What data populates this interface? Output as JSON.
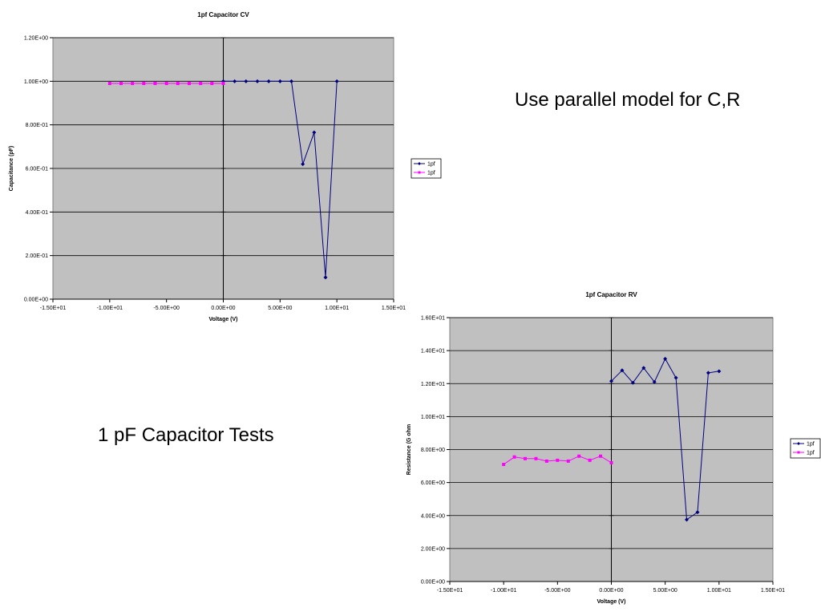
{
  "slide": {
    "heading": "1 pF Capacitor Tests",
    "note": "Use parallel model for C,R"
  },
  "colors": {
    "plot_area": "#c0c0c0",
    "series_positive": "#000080",
    "series_negative": "#ff00ff",
    "gridline": "#000000"
  },
  "chart_data": [
    {
      "type": "scatter",
      "title": "1pf Capacitor CV",
      "xlabel": "Voltage (V)",
      "ylabel": "Capacitance (pF)",
      "xlim": [
        -15,
        15
      ],
      "ylim": [
        0,
        1.2
      ],
      "xticks": [
        -15,
        -10,
        -5,
        0,
        5,
        10,
        15
      ],
      "xtick_labels": [
        "-1.50E+01",
        "-1.00E+01",
        "-5.00E+00",
        "0.00E+00",
        "5.00E+00",
        "1.00E+01",
        "1.50E+01"
      ],
      "yticks": [
        0,
        0.2,
        0.4,
        0.6,
        0.8,
        1.0,
        1.2
      ],
      "ytick_labels": [
        "0.00E+00",
        "2.00E-01",
        "4.00E-01",
        "6.00E-01",
        "8.00E-01",
        "1.00E+00",
        "1.20E+00"
      ],
      "grid": "horizontal major gridlines",
      "legend": "right",
      "series": [
        {
          "name": "1pf",
          "color": "#000080",
          "marker": "diamond",
          "x": [
            0,
            1,
            2,
            3,
            4,
            5,
            6,
            7,
            8,
            9,
            10
          ],
          "y": [
            1.0,
            1.0,
            1.0,
            1.0,
            1.0,
            1.0,
            1.0,
            0.62,
            0.765,
            0.1,
            1.0
          ]
        },
        {
          "name": "1pf",
          "color": "#ff00ff",
          "marker": "square",
          "x": [
            -10,
            -9,
            -8,
            -7,
            -6,
            -5,
            -4,
            -3,
            -2,
            -1,
            0
          ],
          "y": [
            0.99,
            0.99,
            0.99,
            0.99,
            0.99,
            0.99,
            0.99,
            0.99,
            0.99,
            0.99,
            0.99
          ]
        }
      ]
    },
    {
      "type": "scatter",
      "title": "1pf Capacitor RV",
      "xlabel": "Voltage (V)",
      "ylabel": "Resistance (G ohm",
      "xlim": [
        -15,
        15
      ],
      "ylim": [
        0,
        16
      ],
      "xticks": [
        -15,
        -10,
        -5,
        0,
        5,
        10,
        15
      ],
      "xtick_labels": [
        "-1.50E+01",
        "-1.00E+01",
        "-5.00E+00",
        "0.00E+00",
        "5.00E+00",
        "1.00E+01",
        "1.50E+01"
      ],
      "yticks": [
        0,
        2,
        4,
        6,
        8,
        10,
        12,
        14,
        16
      ],
      "ytick_labels": [
        "0.00E+00",
        "2.00E+00",
        "4.00E+00",
        "6.00E+00",
        "8.00E+00",
        "1.00E+01",
        "1.20E+01",
        "1.40E+01",
        "1.60E+01"
      ],
      "grid": "horizontal major gridlines",
      "legend": "right",
      "series": [
        {
          "name": "1pf",
          "color": "#000080",
          "marker": "diamond",
          "x": [
            0,
            1,
            2,
            3,
            4,
            5,
            6,
            7,
            8,
            9,
            10
          ],
          "y": [
            12.15,
            12.8,
            12.05,
            12.95,
            12.1,
            13.5,
            12.35,
            3.75,
            4.2,
            12.65,
            12.75
          ]
        },
        {
          "name": "1pf",
          "color": "#ff00ff",
          "marker": "square",
          "x": [
            -10,
            -9,
            -8,
            -7,
            -6,
            -5,
            -4,
            -3,
            -2,
            -1,
            0
          ],
          "y": [
            7.1,
            7.55,
            7.45,
            7.45,
            7.3,
            7.35,
            7.3,
            7.6,
            7.35,
            7.6,
            7.2
          ]
        }
      ]
    }
  ]
}
